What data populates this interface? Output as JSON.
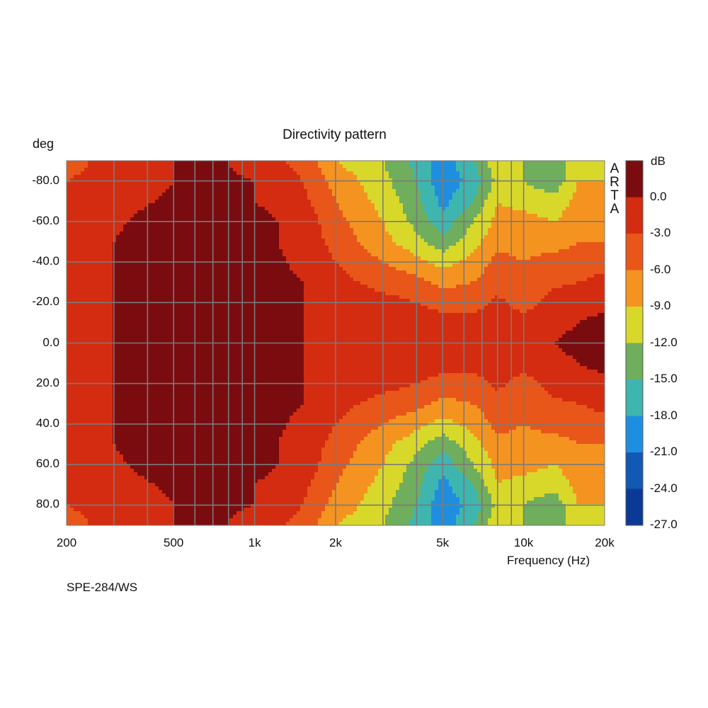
{
  "chart_data": {
    "type": "heatmap",
    "title": "Directivity pattern",
    "ylabel": "deg",
    "xlabel": "Frequency (Hz)",
    "x_scale": "log",
    "xlim": [
      200,
      20000
    ],
    "ylim": [
      -90,
      90
    ],
    "x_ticks": [
      {
        "value": 200,
        "label": "200"
      },
      {
        "value": 500,
        "label": "500"
      },
      {
        "value": 1000,
        "label": "1k"
      },
      {
        "value": 2000,
        "label": "2k"
      },
      {
        "value": 5000,
        "label": "5k"
      },
      {
        "value": 10000,
        "label": "10k"
      },
      {
        "value": 20000,
        "label": "20k"
      }
    ],
    "y_ticks": [
      {
        "value": -80,
        "label": "-80.0"
      },
      {
        "value": -60,
        "label": "-60.0"
      },
      {
        "value": -40,
        "label": "-40.0"
      },
      {
        "value": -20,
        "label": "-20.0"
      },
      {
        "value": 0,
        "label": "0.0"
      },
      {
        "value": 20,
        "label": "20.0"
      },
      {
        "value": 40,
        "label": "40.0"
      },
      {
        "value": 60,
        "label": "60.0"
      },
      {
        "value": 80,
        "label": "80.0"
      }
    ],
    "grid": true,
    "colorbar": {
      "unit": "dB",
      "tick_labels": [
        "0.0",
        "-3.0",
        "-6.0",
        "-9.0",
        "-12.0",
        "-15.0",
        "-18.0",
        "-21.0",
        "-24.0",
        "-27.0"
      ],
      "levels": [
        0,
        -3,
        -6,
        -9,
        -12,
        -15,
        -18,
        -21,
        -24,
        -27
      ],
      "colors": [
        "#7a0c10",
        "#d42c10",
        "#e8561a",
        "#f59320",
        "#d8d82a",
        "#6fae5c",
        "#3fb5b0",
        "#1e8fe0",
        "#1258b5",
        "#0a3a96"
      ]
    },
    "freqs": [
      200,
      300,
      500,
      700,
      1000,
      1500,
      2000,
      3000,
      4000,
      5000,
      6500,
      8000,
      10000,
      13000,
      16000,
      20000
    ],
    "angles": [
      -90,
      -80,
      -70,
      -60,
      -50,
      -40,
      -30,
      -20,
      -10,
      0,
      10,
      20,
      30,
      40,
      50,
      60,
      70,
      80,
      90
    ],
    "values_db": [
      [
        -7,
        -5,
        -3,
        -2.5,
        -4,
        -7,
        -12,
        -15,
        -19,
        -23,
        -18,
        -13,
        -15,
        -17,
        -13,
        -12
      ],
      [
        -6,
        -5,
        -3,
        -2.5,
        -3,
        -6,
        -10,
        -14,
        -18,
        -23,
        -20,
        -14,
        -15,
        -17,
        -12,
        -12
      ],
      [
        -5,
        -4,
        -2.5,
        -2,
        -3,
        -5,
        -9,
        -13,
        -17,
        -22,
        -18,
        -12,
        -13,
        -14,
        -11,
        -11
      ],
      [
        -4,
        -3.5,
        -1.5,
        -1.5,
        -2,
        -4,
        -8,
        -12,
        -16,
        -20,
        -15,
        -11,
        -11,
        -12,
        -10,
        -10
      ],
      [
        -4,
        -3,
        -0.5,
        -2,
        -2,
        -4,
        -7,
        -11,
        -14,
        -17,
        -13,
        -10,
        -10,
        -10,
        -9,
        -9
      ],
      [
        -3.5,
        -3,
        -1,
        -2,
        -2,
        -3.5,
        -6,
        -9,
        -11,
        -13,
        -11,
        -8,
        -9,
        -8,
        -8,
        -7
      ],
      [
        -3.5,
        -3,
        -2,
        -1.5,
        -2,
        -3,
        -5,
        -7,
        -8,
        -10,
        -9,
        -7,
        -8,
        -6.5,
        -6,
        -5
      ],
      [
        -3.5,
        -3,
        -2,
        -0.5,
        -2,
        -3,
        -4,
        -5,
        -6,
        -7,
        -7,
        -5.5,
        -7,
        -5,
        -4,
        -4
      ],
      [
        -3.5,
        -3,
        -2,
        -1,
        -2,
        -3,
        -3.5,
        -4,
        -4.5,
        -5,
        -5,
        -5,
        -5,
        -4,
        -3,
        -2
      ],
      [
        -3.5,
        -3,
        -2,
        -1,
        -2,
        -3,
        -3,
        -3.5,
        -3.5,
        -4,
        -4,
        -4,
        -4,
        -3,
        -2,
        -0.5
      ],
      [
        -3.5,
        -3,
        -2,
        -1,
        -2,
        -3,
        -3.5,
        -4,
        -4.5,
        -5,
        -5,
        -5,
        -5,
        -4,
        -3,
        -2
      ],
      [
        -3.5,
        -3,
        -2,
        -0.5,
        -2,
        -3,
        -4,
        -5,
        -6,
        -7,
        -7,
        -5.5,
        -7,
        -5,
        -4,
        -4
      ],
      [
        -3.5,
        -3,
        -2,
        -1.5,
        -2,
        -3,
        -5,
        -7,
        -8,
        -10,
        -9,
        -7,
        -8,
        -6.5,
        -6,
        -5
      ],
      [
        -3.5,
        -3,
        -1,
        -2,
        -2,
        -3.5,
        -6,
        -9,
        -11,
        -13,
        -11,
        -8,
        -9,
        -8,
        -8,
        -7
      ],
      [
        -4,
        -3,
        -0.5,
        -2,
        -2,
        -4,
        -7,
        -11,
        -14,
        -17,
        -13,
        -10,
        -10,
        -10,
        -9,
        -9
      ],
      [
        -4,
        -3.5,
        -1.5,
        -1.5,
        -2,
        -4,
        -8,
        -12,
        -16,
        -20,
        -15,
        -11,
        -11,
        -12,
        -10,
        -10
      ],
      [
        -5,
        -4,
        -2.5,
        -2,
        -3,
        -5,
        -9,
        -13,
        -17,
        -22,
        -18,
        -12,
        -13,
        -14,
        -11,
        -11
      ],
      [
        -6,
        -5,
        -3,
        -2.5,
        -3,
        -6,
        -10,
        -14,
        -18,
        -23,
        -20,
        -14,
        -15,
        -17,
        -12,
        -12
      ],
      [
        -7,
        -5,
        -3,
        -2.5,
        -4,
        -7,
        -12,
        -15,
        -19,
        -23,
        -18,
        -13,
        -15,
        -17,
        -13,
        -12
      ]
    ]
  },
  "footnote": "SPE-284/WS",
  "brand": [
    "A",
    "R",
    "T",
    "A"
  ],
  "colors": {
    "grid": "#7a7a7a",
    "background": "#ffffff"
  }
}
